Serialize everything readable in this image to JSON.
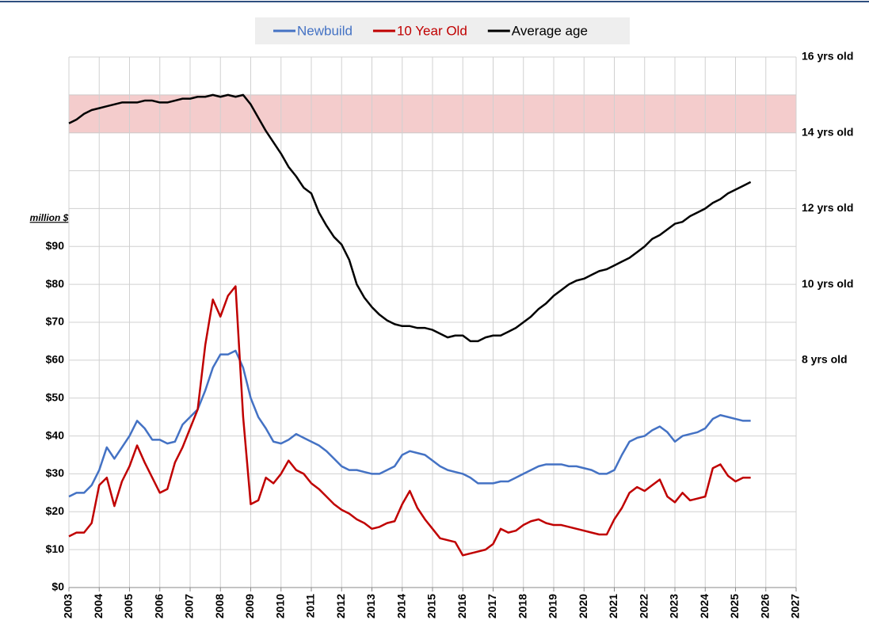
{
  "chart_data": {
    "type": "line",
    "y_unit_label": "million $",
    "x": [
      2003,
      2003.25,
      2003.5,
      2003.75,
      2004,
      2004.25,
      2004.5,
      2004.75,
      2005,
      2005.25,
      2005.5,
      2005.75,
      2006,
      2006.25,
      2006.5,
      2006.75,
      2007,
      2007.25,
      2007.5,
      2007.75,
      2008,
      2008.25,
      2008.5,
      2008.75,
      2009,
      2009.25,
      2009.5,
      2009.75,
      2010,
      2010.25,
      2010.5,
      2010.75,
      2011,
      2011.25,
      2011.5,
      2011.75,
      2012,
      2012.25,
      2012.5,
      2012.75,
      2013,
      2013.25,
      2013.5,
      2013.75,
      2014,
      2014.25,
      2014.5,
      2014.75,
      2015,
      2015.25,
      2015.5,
      2015.75,
      2016,
      2016.25,
      2016.5,
      2016.75,
      2017,
      2017.25,
      2017.5,
      2017.75,
      2018,
      2018.25,
      2018.5,
      2018.75,
      2019,
      2019.25,
      2019.5,
      2019.75,
      2020,
      2020.25,
      2020.5,
      2020.75,
      2021,
      2021.25,
      2021.5,
      2021.75,
      2022,
      2022.25,
      2022.5,
      2022.75,
      2023,
      2023.25,
      2023.5,
      2023.75,
      2024,
      2024.25,
      2024.5,
      2024.75,
      2025,
      2025.25,
      2025.5
    ],
    "series": [
      {
        "name": "Newbuild",
        "color": "#4472c4",
        "values": [
          24,
          25,
          25,
          27,
          31,
          37,
          34,
          37,
          40,
          44,
          42,
          39,
          39,
          38,
          38.5,
          43,
          45,
          47,
          52,
          58,
          61.5,
          61.5,
          62.5,
          58,
          50,
          45,
          42,
          38.5,
          38,
          39,
          40.5,
          39.5,
          38.5,
          37.5,
          36,
          34,
          32,
          31,
          31,
          30.5,
          30,
          30,
          31,
          32,
          35,
          36,
          35.5,
          35,
          33.5,
          32,
          31,
          30.5,
          30,
          29,
          27.5,
          27.5,
          27.5,
          28,
          28,
          29,
          30,
          31,
          32,
          32.5,
          32.5,
          32.5,
          32,
          32,
          31.5,
          31,
          30,
          30,
          31,
          35,
          38.5,
          39.5,
          40,
          41.5,
          42.5,
          41,
          38.5,
          40,
          40.5,
          41,
          42,
          44.5,
          45.5,
          45,
          44.5,
          44,
          44
        ]
      },
      {
        "name": "10 Year Old",
        "color": "#c00000",
        "values": [
          13.5,
          14.5,
          14.5,
          17,
          27,
          29,
          21.5,
          28,
          32,
          37.5,
          33,
          29,
          25,
          26,
          33,
          37,
          42,
          47,
          64,
          76,
          71.5,
          77,
          79.5,
          45,
          22,
          23,
          29,
          27.5,
          30,
          33.5,
          31,
          30,
          27.5,
          26,
          24,
          22,
          20.5,
          19.5,
          18,
          17,
          15.5,
          16,
          17,
          17.5,
          22,
          25.5,
          21,
          18,
          15.5,
          13,
          12.5,
          12,
          8.5,
          9,
          9.5,
          10,
          11.5,
          15.5,
          14.5,
          15,
          16.5,
          17.5,
          18,
          17,
          16.5,
          16.5,
          16,
          15.5,
          15,
          14.5,
          14,
          14,
          18,
          21,
          25,
          26.5,
          25.5,
          27,
          28.5,
          24,
          22.5,
          25,
          23,
          23.5,
          24,
          31.5,
          32.5,
          29.5,
          28,
          29,
          29
        ]
      },
      {
        "name": "Average age",
        "color": "#000000",
        "axis": "y2",
        "values": [
          14.25,
          14.35,
          14.5,
          14.6,
          14.65,
          14.7,
          14.75,
          14.8,
          14.8,
          14.8,
          14.85,
          14.85,
          14.8,
          14.8,
          14.85,
          14.9,
          14.9,
          14.95,
          14.95,
          15,
          14.95,
          15,
          14.95,
          15,
          14.75,
          14.4,
          14.05,
          13.75,
          13.45,
          13.1,
          12.85,
          12.55,
          12.4,
          11.9,
          11.55,
          11.25,
          11.05,
          10.65,
          10,
          9.65,
          9.4,
          9.2,
          9.05,
          8.95,
          8.9,
          8.9,
          8.85,
          8.85,
          8.8,
          8.7,
          8.6,
          8.65,
          8.65,
          8.5,
          8.5,
          8.6,
          8.65,
          8.65,
          8.75,
          8.85,
          9,
          9.15,
          9.35,
          9.5,
          9.7,
          9.85,
          10,
          10.1,
          10.15,
          10.25,
          10.35,
          10.4,
          10.5,
          10.6,
          10.7,
          10.85,
          11,
          11.2,
          11.3,
          11.45,
          11.6,
          11.65,
          11.8,
          11.9,
          12,
          12.15,
          12.25,
          12.4,
          12.5,
          12.6,
          12.7
        ]
      }
    ],
    "xlim": [
      2003,
      2027
    ],
    "xticks": [
      2003,
      2004,
      2005,
      2006,
      2007,
      2008,
      2009,
      2010,
      2011,
      2012,
      2013,
      2014,
      2015,
      2016,
      2017,
      2018,
      2019,
      2020,
      2021,
      2022,
      2023,
      2024,
      2025,
      2026,
      2027
    ],
    "ylim": [
      0,
      140
    ],
    "yticks": [
      {
        "value": 0,
        "label": "$0"
      },
      {
        "value": 10,
        "label": "$10"
      },
      {
        "value": 20,
        "label": "$20"
      },
      {
        "value": 30,
        "label": "$30"
      },
      {
        "value": 40,
        "label": "$40"
      },
      {
        "value": 50,
        "label": "$50"
      },
      {
        "value": 60,
        "label": "$60"
      },
      {
        "value": 70,
        "label": "$70"
      },
      {
        "value": 80,
        "label": "$80"
      },
      {
        "value": 90,
        "label": "$90"
      }
    ],
    "ygrid": [
      0,
      10,
      20,
      30,
      40,
      50,
      60,
      70,
      80,
      90,
      100,
      110,
      120,
      130,
      140
    ],
    "y2lim": [
      2,
      16
    ],
    "y2ticks": [
      {
        "value": 8,
        "label": "8 yrs old"
      },
      {
        "value": 10,
        "label": "10 yrs old"
      },
      {
        "value": 12,
        "label": "12 yrs old"
      },
      {
        "value": 14,
        "label": "14 yrs old"
      },
      {
        "value": 16,
        "label": "16 yrs old"
      }
    ],
    "band_y2": [
      14,
      15
    ],
    "band_color": "#f4cccc",
    "grid": true,
    "legend": "top"
  }
}
